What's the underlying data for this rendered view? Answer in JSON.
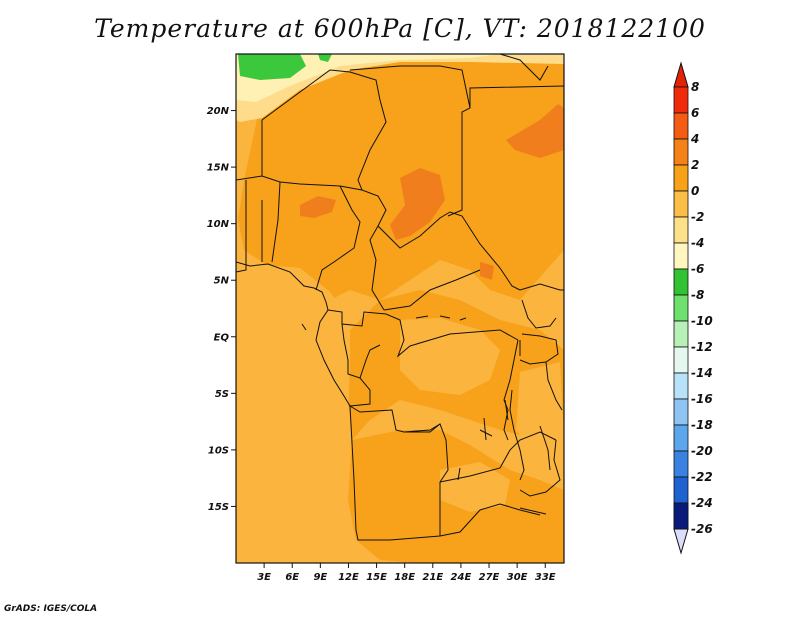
{
  "title": "Temperature at 600hPa [C], VT: 2018122100",
  "credit": "GrADS: IGES/COLA",
  "map": {
    "lon_range": [
      0,
      35
    ],
    "lat_range": [
      -20,
      25
    ],
    "lon_ticks": [
      "3E",
      "6E",
      "9E",
      "12E",
      "15E",
      "18E",
      "21E",
      "24E",
      "27E",
      "30E",
      "33E"
    ],
    "lat_ticks": [
      "20N",
      "15N",
      "10N",
      "5N",
      "EQ",
      "5S",
      "10S",
      "15S"
    ],
    "field_colors": {
      "below_0": "#fee48c",
      "0_to_2": "#fbb43e",
      "2_to_4": "#f7a21a",
      "4_to_6": "#f07e1c",
      "minus2_to_0": "#fedc8c",
      "minus4_to_minus2": "#fff0b4",
      "minus6_to_minus4": "#3cc83c"
    }
  },
  "colorbar": {
    "levels": [
      "8",
      "6",
      "4",
      "2",
      "0",
      "-2",
      "-4",
      "-6",
      "-8",
      "-10",
      "-12",
      "-14",
      "-16",
      "-18",
      "-20",
      "-22",
      "-24",
      "-26"
    ],
    "colors": [
      "#f12a0c",
      "#f35c12",
      "#f48218",
      "#f7a21a",
      "#fbbe48",
      "#fde08a",
      "#fff6c0",
      "#33c233",
      "#6ee06e",
      "#b8f0b8",
      "#e4f8f0",
      "#b8e2f8",
      "#8ec4f2",
      "#5ea6ec",
      "#3a82e2",
      "#1e62d2",
      "#0c3eb0",
      "#0a1a7a"
    ],
    "top_arrow_color": "#e42206",
    "bottom_arrow_color": "#dcdcfc"
  }
}
